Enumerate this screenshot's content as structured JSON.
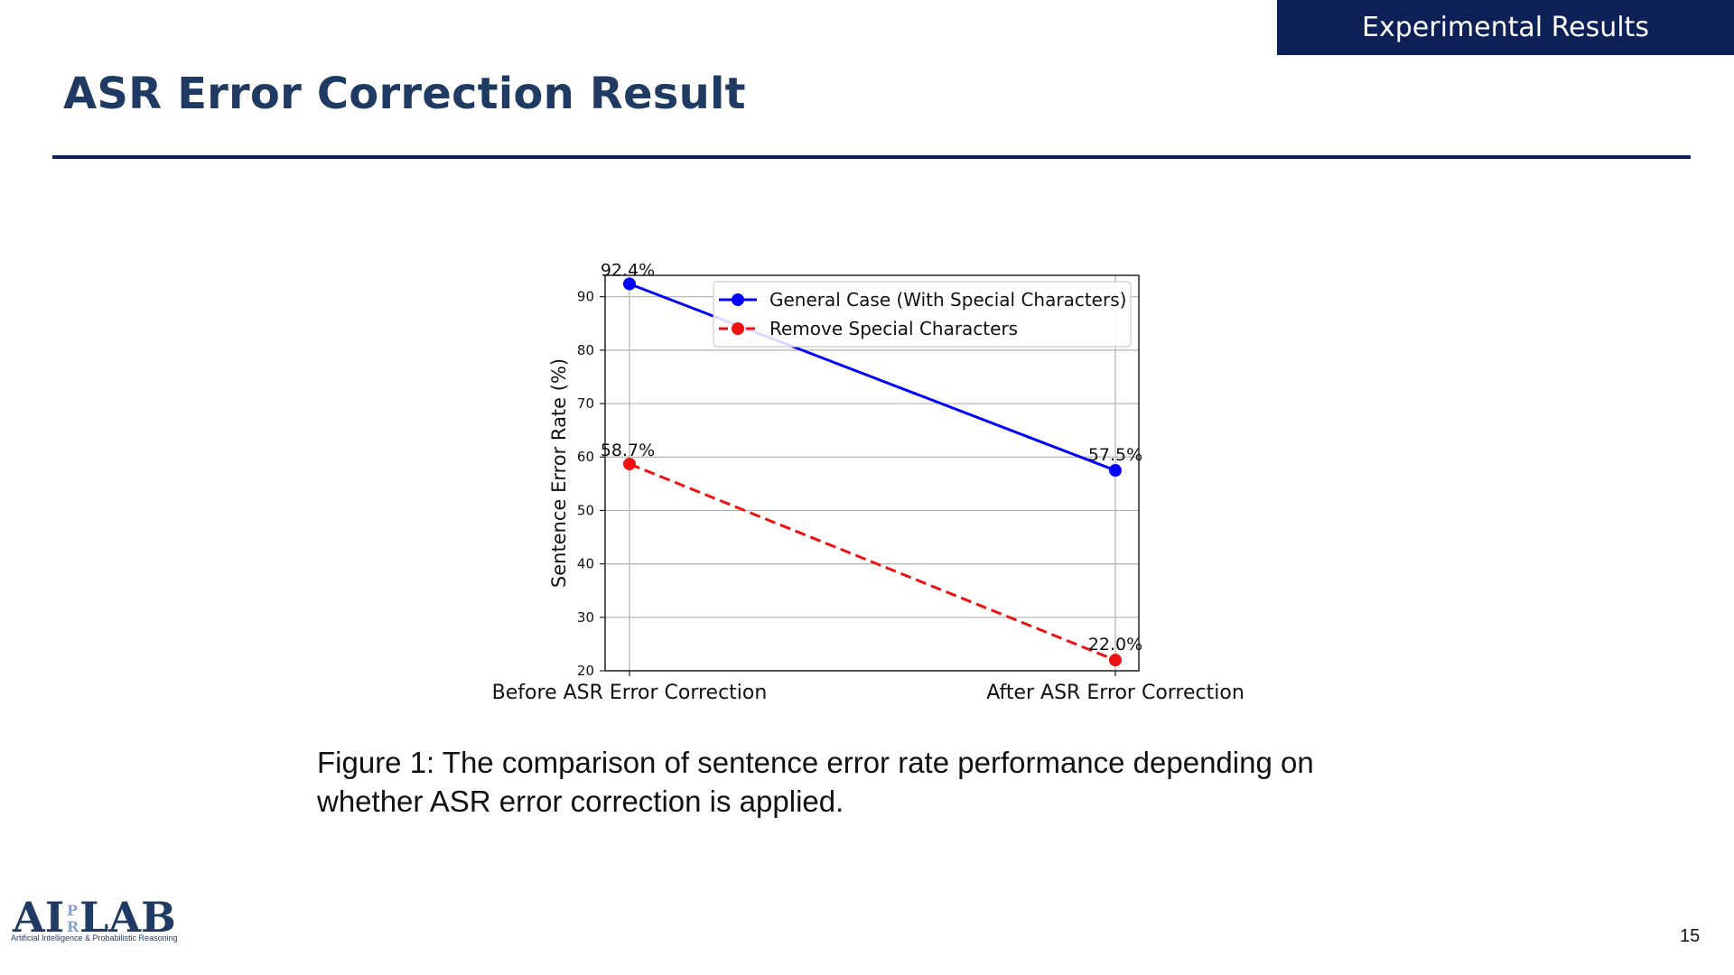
{
  "header": {
    "section_label": "Experimental Results",
    "title": "ASR Error Correction Result"
  },
  "figure": {
    "caption_line1": "Figure 1: The comparison of sentence error rate performance depending on",
    "caption_line2": "whether ASR error correction is applied."
  },
  "footer": {
    "logo_text": "AI PR LAB",
    "logo_subtitle": "Artificial Intelligence & Probabilistic Reasoning",
    "page_number": "15"
  },
  "colors": {
    "accent_navy": "#0e2157",
    "title_blue": "#1f3b64",
    "series_general": "#0000ff",
    "series_remove": "#ee1111"
  },
  "chart_data": {
    "type": "line",
    "title": "",
    "xlabel": "",
    "ylabel": "Sentence Error Rate (%)",
    "categories": [
      "Before ASR Error Correction",
      "After ASR Error Correction"
    ],
    "ylim": [
      20,
      94
    ],
    "yticks": [
      20,
      30,
      40,
      50,
      60,
      70,
      80,
      90
    ],
    "grid": true,
    "legend_position": "top-right",
    "series": [
      {
        "name": "General Case (With Special Characters)",
        "values": [
          92.4,
          57.5
        ],
        "labels": [
          "92.4%",
          "57.5%"
        ],
        "color": "#0000ff",
        "line_style": "solid",
        "marker": "circle"
      },
      {
        "name": "Remove Special Characters",
        "values": [
          58.7,
          22.0
        ],
        "labels": [
          "58.7%",
          "22.0%"
        ],
        "color": "#ee1111",
        "line_style": "dashed",
        "marker": "circle"
      }
    ]
  }
}
